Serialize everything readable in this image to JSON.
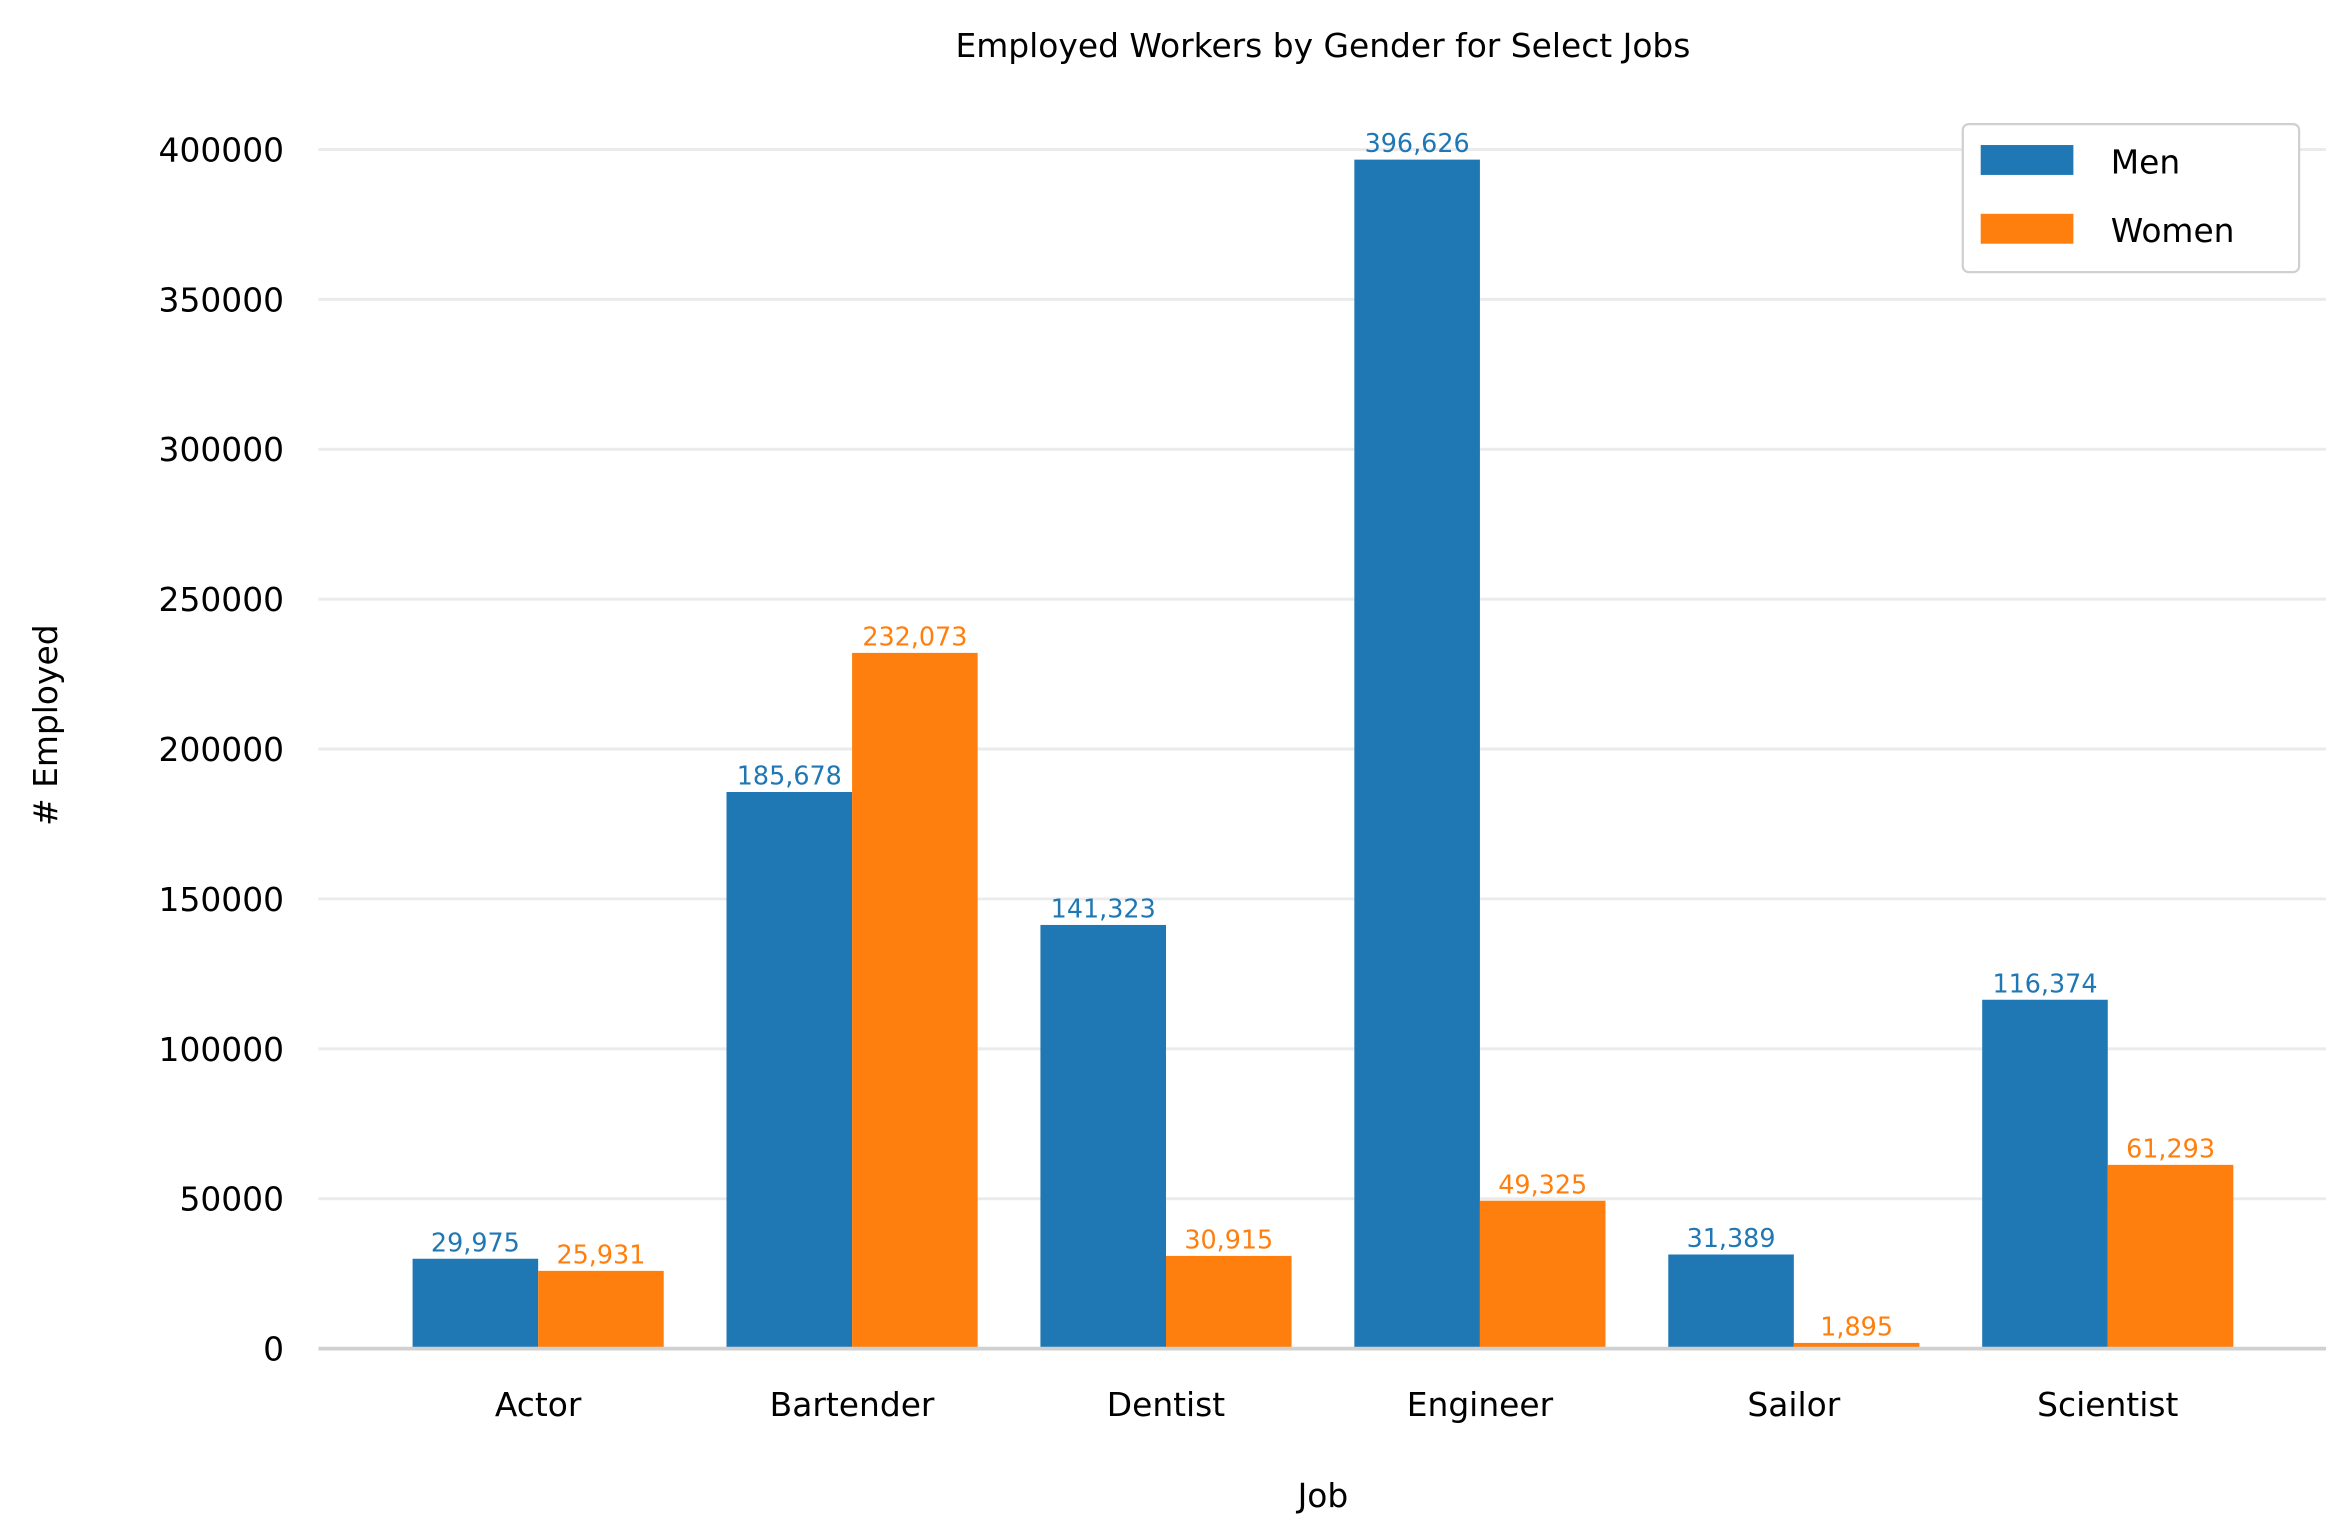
{
  "chart_data": {
    "type": "bar",
    "title": "Employed Workers by Gender for Select Jobs",
    "xlabel": "Job",
    "ylabel": "# Employed",
    "categories": [
      "Actor",
      "Bartender",
      "Dentist",
      "Engineer",
      "Sailor",
      "Scientist"
    ],
    "series": [
      {
        "name": "Men",
        "color": "#1f77b4",
        "values": [
          29975,
          185678,
          141323,
          396626,
          31389,
          116374
        ],
        "labels": [
          "29,975",
          "185,678",
          "141,323",
          "396,626",
          "31,389",
          "116,374"
        ]
      },
      {
        "name": "Women",
        "color": "#ff7f0e",
        "values": [
          25931,
          232073,
          30915,
          49325,
          1895,
          61293
        ],
        "labels": [
          "25,931",
          "232,073",
          "30,915",
          "49,325",
          "1,895",
          "61,293"
        ]
      }
    ],
    "ylim": [
      0,
      400000
    ],
    "yticks": [
      "0",
      "50000",
      "100000",
      "150000",
      "200000",
      "250000",
      "300000",
      "350000",
      "400000"
    ],
    "grid": true,
    "legend_position": "top-right"
  }
}
